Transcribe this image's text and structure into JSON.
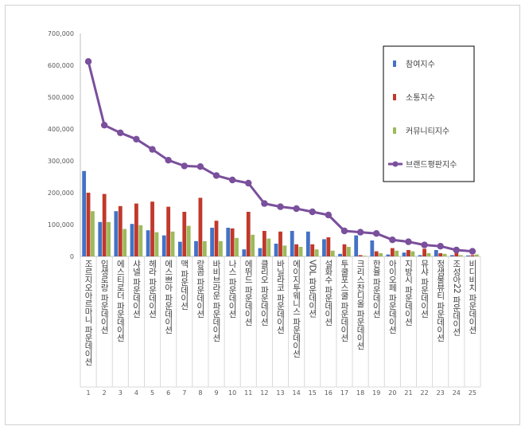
{
  "chart_data": {
    "type": "bar",
    "title": "",
    "xlabel": "",
    "ylabel": "",
    "ylim": [
      0,
      700000
    ],
    "yticks": [
      0,
      100000,
      200000,
      300000,
      400000,
      500000,
      600000,
      700000
    ],
    "ytick_labels": [
      "0",
      "100,000",
      "200,000",
      "300,000",
      "400,000",
      "500,000",
      "600,000",
      "700,000"
    ],
    "grid": false,
    "legend_position": "top-right",
    "categories": [
      "조르지오아르마니 파운데이션",
      "입생로랑 파운데이션",
      "에스티로더 파운데이션",
      "샤넬 파운데이션",
      "헤라 파운데이션",
      "에스쁘아 파운데이션",
      "맥 파운데이션",
      "랑콤 파운데이션",
      "바비브라운 파운데이션",
      "나스 파운데이션",
      "에뛰드 파운데이션",
      "클리오 파운데이션",
      "바닐라코 파운데이션",
      "에이지투웨니스 파운데이션",
      "VDL 파운데이션",
      "설화수 파운데이션",
      "투쿨포스쿨 파운데이션",
      "크리스찬디올 파운데이션",
      "한율 파운데이션",
      "아이오페 파운데이션",
      "지방시 파운데이션",
      "뮤샤 파운데이션",
      "정샘물뷰티 파운데이션",
      "조성아22 파운데이션",
      "비디비치 파운데이션"
    ],
    "rank_labels": [
      "1",
      "2",
      "3",
      "4",
      "5",
      "6",
      "7",
      "8",
      "9",
      "10",
      "11",
      "12",
      "13",
      "14",
      "15",
      "16",
      "17",
      "18",
      "19",
      "20",
      "21",
      "22",
      "23",
      "24",
      "25"
    ],
    "series": [
      {
        "name": "참여지수",
        "kind": "bar",
        "color": "#4472c4",
        "values": [
          268000,
          108000,
          142000,
          102000,
          82000,
          66000,
          46000,
          48000,
          90000,
          90000,
          22000,
          26000,
          40000,
          80000,
          78000,
          54000,
          8000,
          66000,
          50000,
          6000,
          12000,
          4000,
          20000,
          4000,
          3000
        ]
      },
      {
        "name": "소통지수",
        "kind": "bar",
        "color": "#c0392b",
        "values": [
          200000,
          196000,
          158000,
          166000,
          172000,
          156000,
          140000,
          184000,
          112000,
          88000,
          140000,
          80000,
          78000,
          38000,
          38000,
          60000,
          38000,
          4000,
          16000,
          26000,
          20000,
          24000,
          10000,
          12000,
          4000
        ]
      },
      {
        "name": "커뮤니티지수",
        "kind": "bar",
        "color": "#9bbb59",
        "values": [
          142000,
          108000,
          86000,
          98000,
          76000,
          78000,
          96000,
          48000,
          48000,
          58000,
          68000,
          56000,
          34000,
          30000,
          22000,
          18000,
          30000,
          2000,
          10000,
          18000,
          16000,
          10000,
          8000,
          4000,
          6000
        ]
      },
      {
        "name": "브랜드평판지수",
        "kind": "line",
        "color": "#7a4f9c",
        "values": [
          612000,
          412000,
          388000,
          368000,
          336000,
          302000,
          284000,
          282000,
          254000,
          240000,
          230000,
          166000,
          156000,
          150000,
          140000,
          130000,
          80000,
          76000,
          72000,
          52000,
          46000,
          36000,
          32000,
          20000,
          16000
        ]
      }
    ]
  }
}
